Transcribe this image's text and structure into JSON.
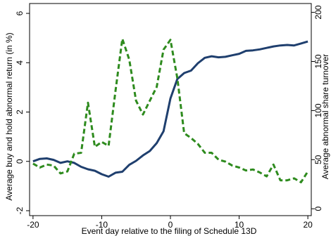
{
  "chart_data": {
    "type": "line",
    "title": "",
    "xlabel": "Event day relative to the filing of Schedule 13D",
    "ylabel": "Average buy and hold abnormal return (in %)",
    "y2label": "Average abnormal share turnover",
    "xlim": [
      -20.5,
      20.5
    ],
    "ylim": [
      -2.2,
      6.4
    ],
    "y2lim": [
      -7,
      209
    ],
    "x_ticks": [
      -20,
      -10,
      0,
      10,
      20
    ],
    "y_ticks": [
      -2,
      0,
      2,
      4,
      6
    ],
    "y2_ticks": [
      0,
      50,
      100,
      150,
      200
    ],
    "grid": false,
    "legend": "none",
    "colors": {
      "return_line": "#1f3f6e",
      "turnover_line": "#2e8b1e"
    },
    "series": [
      {
        "axis": "left",
        "style": "solid",
        "x": [
          -20,
          -19,
          -18,
          -17,
          -16,
          -15,
          -14,
          -13,
          -12,
          -11,
          -10,
          -9,
          -8,
          -7,
          -6,
          -5,
          -4,
          -3,
          -2,
          -1,
          0,
          1,
          2,
          3,
          4,
          5,
          6,
          7,
          8,
          9,
          10,
          11,
          12,
          13,
          14,
          15,
          16,
          17,
          18,
          19,
          20
        ],
        "values": [
          0.0,
          0.1,
          0.12,
          0.06,
          -0.06,
          0.0,
          -0.06,
          -0.22,
          -0.32,
          -0.38,
          -0.52,
          -0.62,
          -0.46,
          -0.42,
          -0.14,
          0.02,
          0.24,
          0.42,
          0.74,
          1.22,
          2.55,
          3.34,
          3.58,
          3.68,
          3.98,
          4.2,
          4.26,
          4.22,
          4.24,
          4.3,
          4.36,
          4.48,
          4.5,
          4.54,
          4.6,
          4.66,
          4.7,
          4.72,
          4.7,
          4.78,
          4.86
        ]
      },
      {
        "axis": "right",
        "style": "dashed",
        "x": [
          -20,
          -19,
          -18,
          -17,
          -16,
          -15,
          -14,
          -13,
          -12,
          -11,
          -10,
          -9,
          -8,
          -7,
          -6,
          -5,
          -4,
          -3,
          -2,
          -1,
          0,
          1,
          2,
          3,
          4,
          5,
          6,
          7,
          8,
          9,
          10,
          11,
          12,
          13,
          14,
          15,
          16,
          17,
          18,
          19,
          20
        ],
        "values": [
          46,
          42,
          45,
          44,
          36,
          38,
          56,
          57,
          108,
          63,
          68,
          64,
          120,
          173,
          152,
          110,
          96,
          110,
          124,
          162,
          172,
          133,
          77,
          72,
          66,
          57,
          57,
          50,
          48,
          44,
          42,
          39,
          40,
          37,
          33,
          45,
          29,
          29,
          31,
          27,
          38
        ]
      }
    ]
  }
}
